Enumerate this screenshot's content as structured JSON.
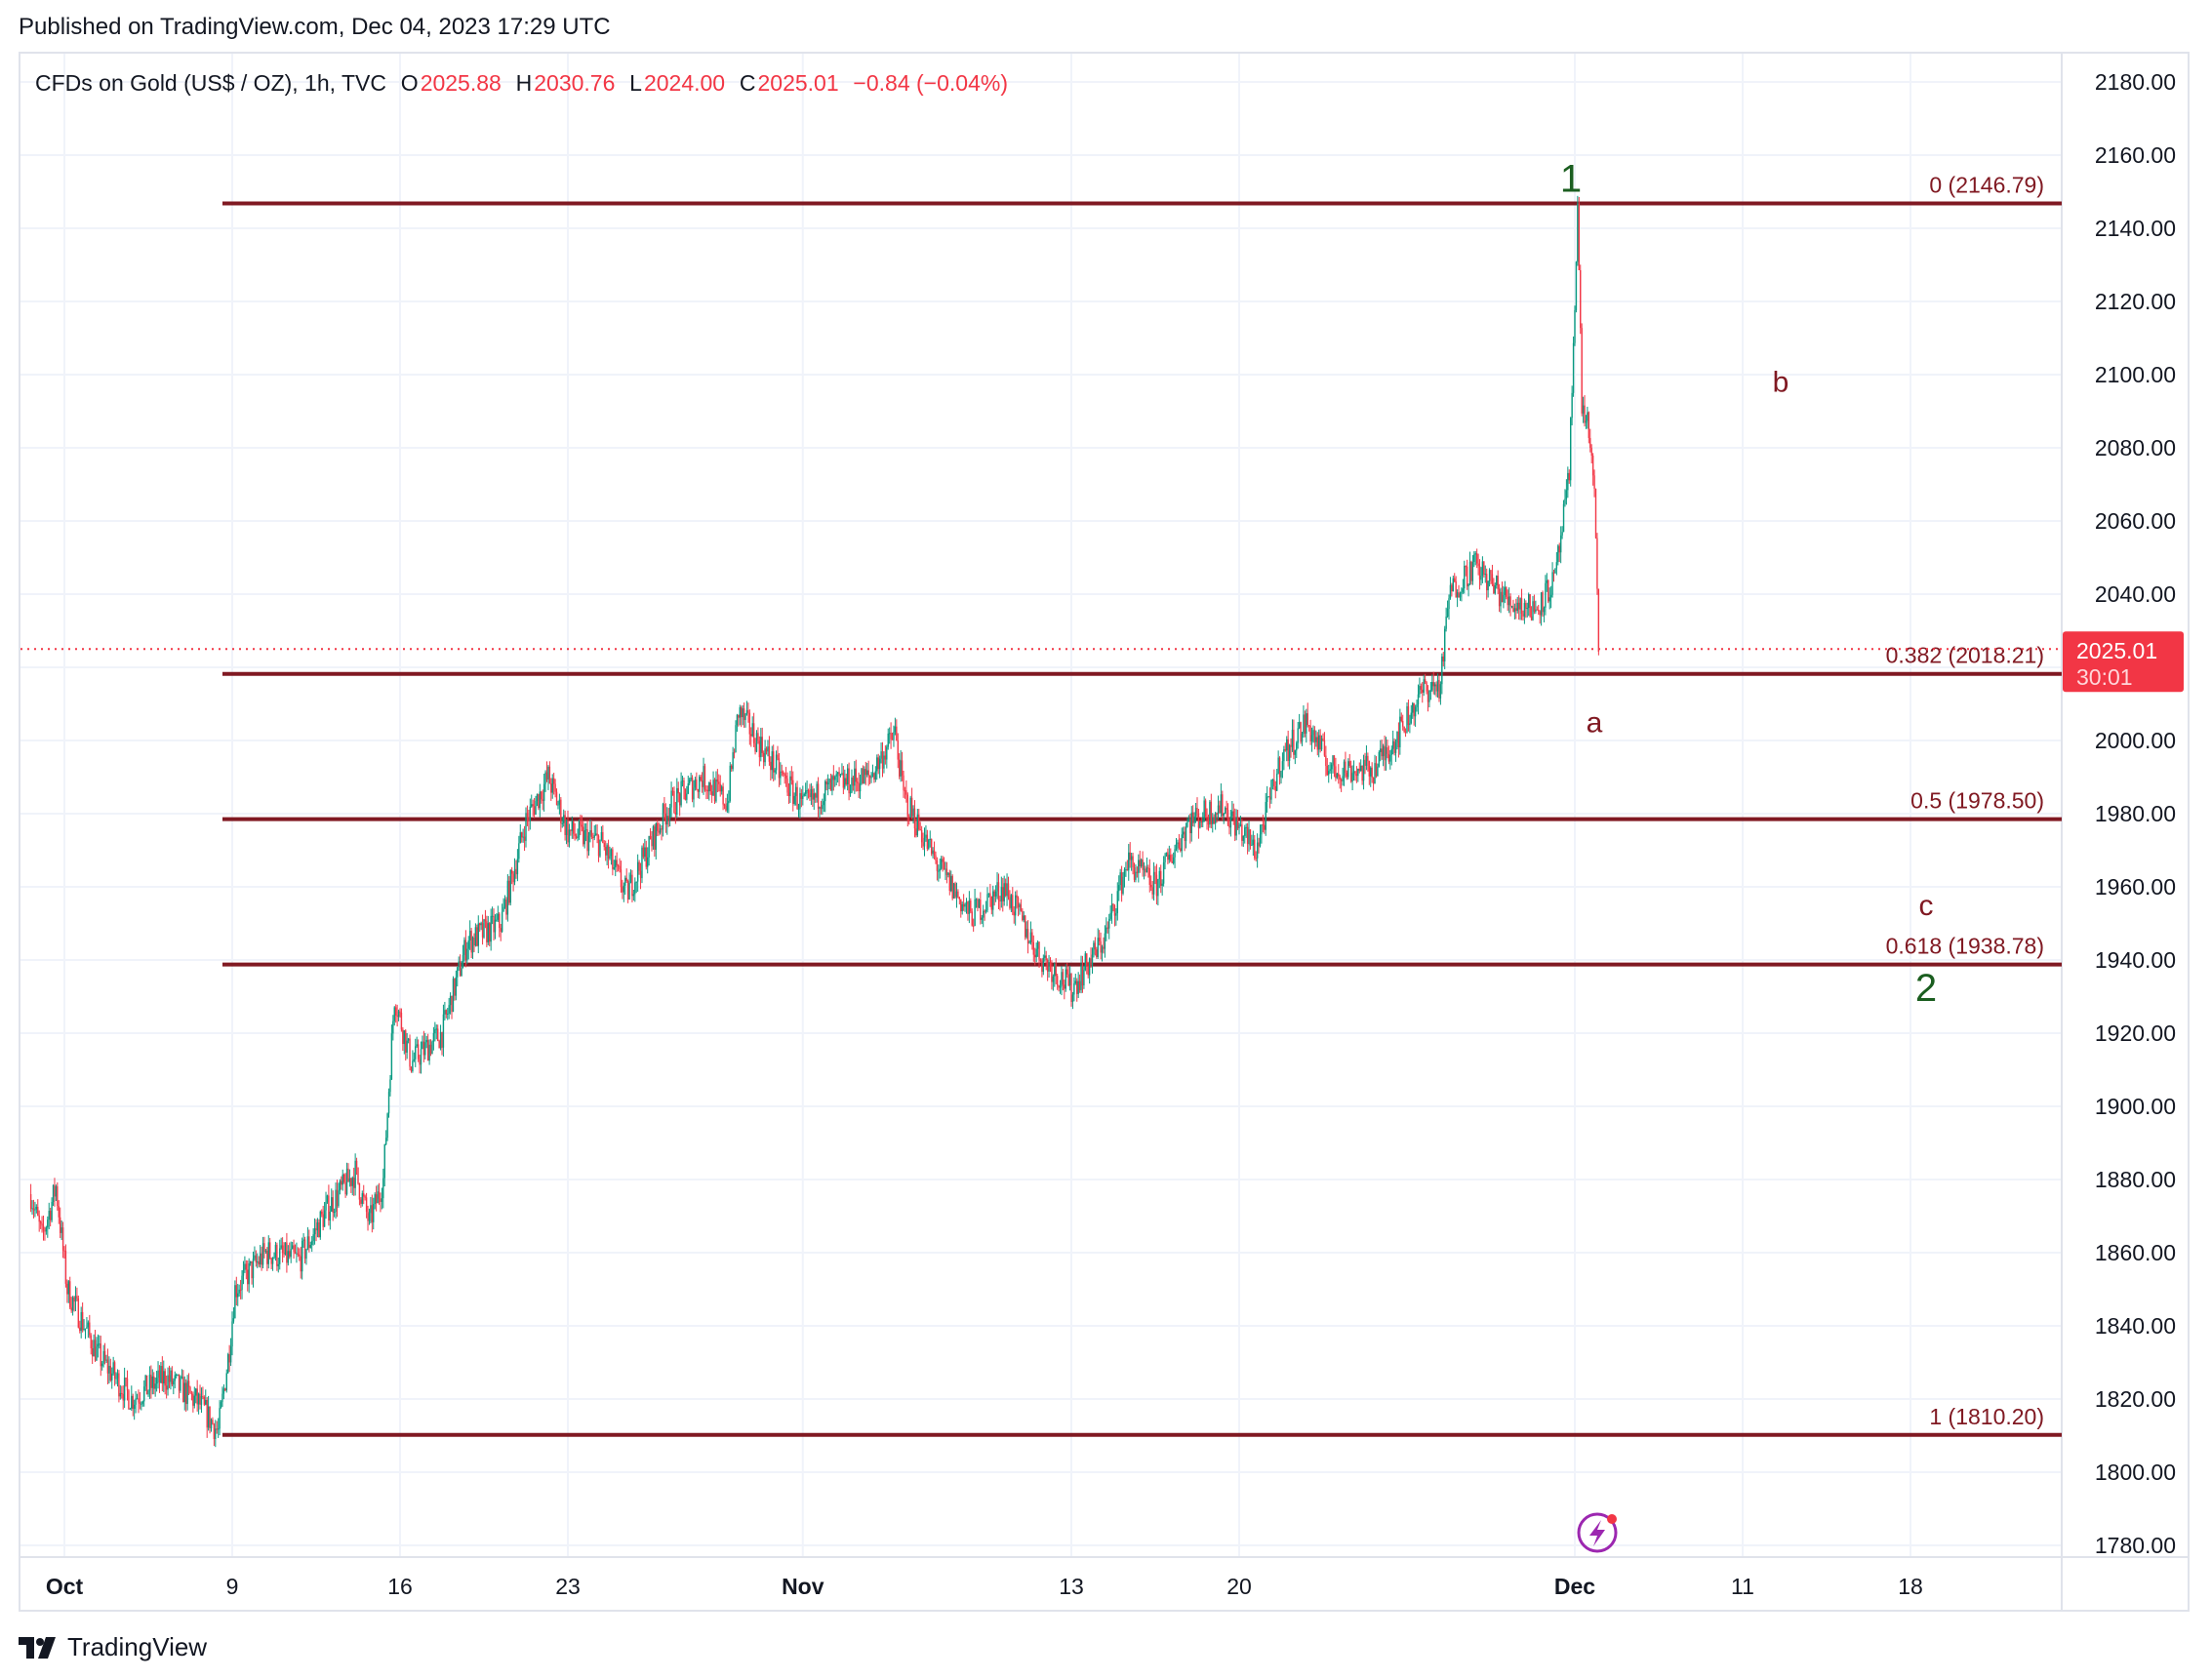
{
  "header": {
    "published": "Published on TradingView.com, Dec 04, 2023 17:29 UTC"
  },
  "legend": {
    "symbol": "CFDs on Gold (US$ / OZ), 1h, TVC",
    "open_label": "O",
    "open": "2025.88",
    "high_label": "H",
    "high": "2030.76",
    "low_label": "L",
    "low": "2024.00",
    "close_label": "C",
    "close": "2025.01",
    "change": "−0.84 (−0.04%)"
  },
  "price_tag": {
    "price": "2025.01",
    "countdown": "30:01"
  },
  "footer": {
    "brand": "TradingView"
  },
  "colors": {
    "up": "#089981",
    "down": "#f23645",
    "fib": "#801922",
    "wave_green": "#1b5e20",
    "wave_red": "#801922"
  },
  "chart_data": {
    "type": "candlestick",
    "title": "",
    "ylim": [
      1780,
      2180
    ],
    "y_ticks": [
      "2180.00",
      "2160.00",
      "2140.00",
      "2120.00",
      "2100.00",
      "2080.00",
      "2060.00",
      "2040.00",
      "2020.00",
      "2000.00",
      "1980.00",
      "1960.00",
      "1940.00",
      "1920.00",
      "1900.00",
      "1880.00",
      "1860.00",
      "1840.00",
      "1820.00",
      "1800.00",
      "1780.00"
    ],
    "x_ticks": [
      {
        "label": "Oct",
        "date": "2023-10-02"
      },
      {
        "label": "9",
        "date": "2023-10-09"
      },
      {
        "label": "16",
        "date": "2023-10-16"
      },
      {
        "label": "23",
        "date": "2023-10-23"
      },
      {
        "label": "Nov",
        "date": "2023-11-01"
      },
      {
        "label": "13",
        "date": "2023-11-13"
      },
      {
        "label": "20",
        "date": "2023-11-20"
      },
      {
        "label": "Dec",
        "date": "2023-12-04"
      },
      {
        "label": "11",
        "date": "2023-12-11"
      },
      {
        "label": "18",
        "date": "2023-12-18"
      }
    ],
    "grid": true,
    "current_price": 2025.01,
    "price_path": [
      [
        "2023-09-29T00:00",
        1876
      ],
      [
        "2023-09-29T08:00",
        1864
      ],
      [
        "2023-09-29T18:00",
        1878
      ],
      [
        "2023-10-02T02:00",
        1850
      ],
      [
        "2023-10-03T00:00",
        1832
      ],
      [
        "2023-10-04T00:00",
        1820
      ],
      [
        "2023-10-05T00:00",
        1826
      ],
      [
        "2023-10-06T00:00",
        1819
      ],
      [
        "2023-10-06T14:00",
        1811
      ],
      [
        "2023-10-06T22:00",
        1834
      ],
      [
        "2023-10-09T02:00",
        1850
      ],
      [
        "2023-10-10T00:00",
        1860
      ],
      [
        "2023-10-11T00:00",
        1858
      ],
      [
        "2023-10-11T20:00",
        1872
      ],
      [
        "2023-10-12T16:00",
        1882
      ],
      [
        "2023-10-13T02:00",
        1868
      ],
      [
        "2023-10-13T12:00",
        1880
      ],
      [
        "2023-10-13T20:00",
        1930
      ],
      [
        "2023-10-16T08:00",
        1912
      ],
      [
        "2023-10-17T06:00",
        1920
      ],
      [
        "2023-10-18T00:00",
        1945
      ],
      [
        "2023-10-19T00:00",
        1950
      ],
      [
        "2023-10-19T18:00",
        1978
      ],
      [
        "2023-10-20T10:00",
        1990
      ],
      [
        "2023-10-23T00:00",
        1975
      ],
      [
        "2023-10-24T00:00",
        1972
      ],
      [
        "2023-10-24T18:00",
        1958
      ],
      [
        "2023-10-26T00:00",
        1982
      ],
      [
        "2023-10-27T00:00",
        1990
      ],
      [
        "2023-10-27T18:00",
        1983
      ],
      [
        "2023-10-30T02:00",
        2008
      ],
      [
        "2023-10-31T00:00",
        1995
      ],
      [
        "2023-11-01T00:00",
        1982
      ],
      [
        "2023-11-02T00:00",
        1988
      ],
      [
        "2023-11-03T00:00",
        1990
      ],
      [
        "2023-11-03T18:00",
        2002
      ],
      [
        "2023-11-06T00:00",
        1985
      ],
      [
        "2023-11-07T00:00",
        1966
      ],
      [
        "2023-11-08T00:00",
        1952
      ],
      [
        "2023-11-09T00:00",
        1960
      ],
      [
        "2023-11-10T00:00",
        1942
      ],
      [
        "2023-11-13T00:00",
        1932
      ],
      [
        "2023-11-14T00:00",
        1946
      ],
      [
        "2023-11-14T16:00",
        1967
      ],
      [
        "2023-11-15T12:00",
        1960
      ],
      [
        "2023-11-16T12:00",
        1978
      ],
      [
        "2023-11-17T12:00",
        1982
      ],
      [
        "2023-11-20T00:00",
        1976
      ],
      [
        "2023-11-20T12:00",
        1970
      ],
      [
        "2023-11-21T06:00",
        1995
      ],
      [
        "2023-11-22T00:00",
        2005
      ],
      [
        "2023-11-22T18:00",
        1992
      ],
      [
        "2023-11-24T00:00",
        1992
      ],
      [
        "2023-11-24T18:00",
        2002
      ],
      [
        "2023-11-27T12:00",
        2014
      ],
      [
        "2023-11-28T00:00",
        2015
      ],
      [
        "2023-11-28T06:00",
        2040
      ],
      [
        "2023-11-29T00:00",
        2048
      ],
      [
        "2023-11-30T00:00",
        2038
      ],
      [
        "2023-11-30T20:00",
        2036
      ],
      [
        "2023-12-01T10:00",
        2044
      ],
      [
        "2023-12-01T20:00",
        2072
      ],
      [
        "2023-12-04T02:00",
        2146
      ],
      [
        "2023-12-04T05:00",
        2092
      ],
      [
        "2023-12-04T10:00",
        2085
      ],
      [
        "2023-12-04T14:00",
        2066
      ],
      [
        "2023-12-04T17:00",
        2025
      ]
    ],
    "fib_levels": [
      {
        "ratio": "0",
        "price": 2146.79,
        "label": "0 (2146.79)"
      },
      {
        "ratio": "0.382",
        "price": 2018.21,
        "label": "0.382 (2018.21)"
      },
      {
        "ratio": "0.5",
        "price": 1978.5,
        "label": "0.5 (1978.50)"
      },
      {
        "ratio": "0.618",
        "price": 1938.78,
        "label": "0.618 (1938.78)"
      },
      {
        "ratio": "1",
        "price": 1810.2,
        "label": "1 (1810.20)"
      }
    ],
    "wave_labels": [
      {
        "text": "1",
        "color": "green",
        "date": "2023-12-04T02:00",
        "price": 2150
      },
      {
        "text": "a",
        "color": "red",
        "date": "2023-12-04T17:00",
        "price": 2005
      },
      {
        "text": "b",
        "color": "red",
        "date": "2023-12-11T12:00",
        "price": 2098
      },
      {
        "text": "c",
        "color": "red",
        "date": "2023-12-18T12:00",
        "price": 1955
      },
      {
        "text": "2",
        "color": "green",
        "date": "2023-12-18T12:00",
        "price": 1932
      }
    ]
  }
}
